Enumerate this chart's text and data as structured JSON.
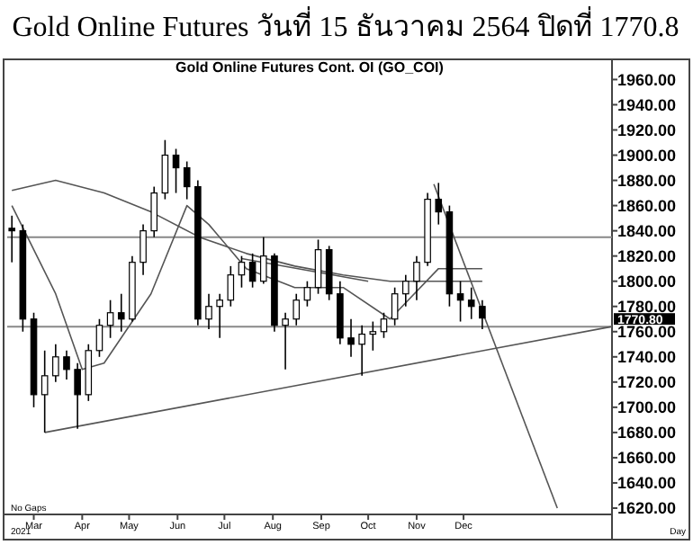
{
  "chart_data": {
    "type": "candlestick",
    "title": "Gold Online Futures วันที่ 15 ธันวาคม 2564 ปิดที่ 1770.8",
    "subtitle": "Gold Online Futures Cont. OI (GO_COI)",
    "x": [
      "2021-02-15",
      "2021-02-22",
      "2021-03-01",
      "2021-03-08",
      "2021-03-15",
      "2021-03-22",
      "2021-03-29",
      "2021-04-05",
      "2021-04-12",
      "2021-04-19",
      "2021-04-26",
      "2021-05-03",
      "2021-05-10",
      "2021-05-17",
      "2021-05-24",
      "2021-05-31",
      "2021-06-07",
      "2021-06-14",
      "2021-06-21",
      "2021-06-28",
      "2021-07-05",
      "2021-07-12",
      "2021-07-19",
      "2021-07-26",
      "2021-08-02",
      "2021-08-09",
      "2021-08-16",
      "2021-08-23",
      "2021-08-30",
      "2021-09-06",
      "2021-09-13",
      "2021-09-20",
      "2021-09-27",
      "2021-10-04",
      "2021-10-11",
      "2021-10-18",
      "2021-10-25",
      "2021-11-01",
      "2021-11-08",
      "2021-11-15",
      "2021-11-22",
      "2021-11-29",
      "2021-12-06",
      "2021-12-13"
    ],
    "ohlc": [
      [
        1842,
        1852,
        1815,
        1840
      ],
      [
        1840,
        1845,
        1760,
        1770
      ],
      [
        1770,
        1775,
        1700,
        1710
      ],
      [
        1710,
        1745,
        1680,
        1725
      ],
      [
        1725,
        1750,
        1720,
        1740
      ],
      [
        1740,
        1745,
        1722,
        1730
      ],
      [
        1730,
        1735,
        1683,
        1710
      ],
      [
        1710,
        1750,
        1705,
        1745
      ],
      [
        1745,
        1770,
        1740,
        1765
      ],
      [
        1765,
        1785,
        1755,
        1775
      ],
      [
        1775,
        1790,
        1760,
        1770
      ],
      [
        1770,
        1820,
        1768,
        1815
      ],
      [
        1815,
        1845,
        1805,
        1840
      ],
      [
        1840,
        1875,
        1835,
        1870
      ],
      [
        1870,
        1912,
        1865,
        1900
      ],
      [
        1900,
        1905,
        1870,
        1890
      ],
      [
        1890,
        1895,
        1865,
        1875
      ],
      [
        1875,
        1880,
        1765,
        1770
      ],
      [
        1770,
        1790,
        1762,
        1780
      ],
      [
        1780,
        1790,
        1755,
        1785
      ],
      [
        1785,
        1812,
        1780,
        1805
      ],
      [
        1805,
        1820,
        1795,
        1815
      ],
      [
        1815,
        1822,
        1795,
        1800
      ],
      [
        1800,
        1835,
        1798,
        1820
      ],
      [
        1820,
        1822,
        1760,
        1765
      ],
      [
        1765,
        1775,
        1730,
        1770
      ],
      [
        1770,
        1790,
        1765,
        1785
      ],
      [
        1785,
        1800,
        1780,
        1795
      ],
      [
        1795,
        1833,
        1790,
        1825
      ],
      [
        1825,
        1828,
        1785,
        1790
      ],
      [
        1790,
        1800,
        1750,
        1755
      ],
      [
        1755,
        1770,
        1740,
        1750
      ],
      [
        1750,
        1765,
        1725,
        1758
      ],
      [
        1758,
        1768,
        1745,
        1760
      ],
      [
        1760,
        1775,
        1755,
        1770
      ],
      [
        1770,
        1795,
        1765,
        1790
      ],
      [
        1790,
        1805,
        1780,
        1800
      ],
      [
        1800,
        1820,
        1785,
        1815
      ],
      [
        1815,
        1870,
        1812,
        1865
      ],
      [
        1865,
        1878,
        1845,
        1855
      ],
      [
        1855,
        1860,
        1780,
        1790
      ],
      [
        1790,
        1800,
        1768,
        1785
      ],
      [
        1785,
        1795,
        1770,
        1780
      ],
      [
        1780,
        1785,
        1762,
        1770.8
      ]
    ],
    "color": "#000000",
    "series": [
      {
        "type": "line",
        "color": "#555555",
        "x": [
          "2021-02-15",
          "2021-03-15",
          "2021-04-15",
          "2021-05-15",
          "2021-06-15",
          "2021-07-15",
          "2021-08-15",
          "2021-09-15",
          "2021-10-15",
          "2021-11-15",
          "2021-12-13"
        ],
        "values": [
          1872,
          1880,
          1870,
          1855,
          1835,
          1822,
          1812,
          1805,
          1800,
          1800,
          1800
        ]
      },
      {
        "type": "line",
        "color": "#555555",
        "x": [
          "2021-02-15",
          "2021-03-15",
          "2021-04-01",
          "2021-04-15",
          "2021-05-15",
          "2021-06-07",
          "2021-06-21",
          "2021-07-15",
          "2021-08-15",
          "2021-09-15",
          "2021-10-15",
          "2021-11-15",
          "2021-12-13"
        ],
        "values": [
          1860,
          1790,
          1730,
          1735,
          1790,
          1860,
          1845,
          1810,
          1795,
          1795,
          1770,
          1810,
          1810
        ]
      },
      {
        "type": "line",
        "color": "#555555",
        "x": [
          "2021-03-08",
          "2022-03-06"
        ],
        "values": [
          1680,
          1764
        ]
      },
      {
        "type": "line",
        "color": "#555555",
        "x": [
          "2021-11-12",
          "2022-01-30"
        ],
        "values": [
          1877,
          1620
        ]
      },
      {
        "type": "line",
        "color": "#555555",
        "x": [
          "2021-07-12",
          "2021-10-01"
        ],
        "values": [
          1818,
          1800
        ]
      }
    ],
    "ref_lines": [
      {
        "axis": "y",
        "value": 1835,
        "color": "#888888"
      },
      {
        "axis": "y",
        "value": 1764,
        "color": "#888888"
      }
    ],
    "xlim": [
      "2021-02-12",
      "2022-03-06"
    ],
    "xticks": [
      {
        "value": "2021-03-01",
        "label": "Mar"
      },
      {
        "value": "2021-04-01",
        "label": "Apr"
      },
      {
        "value": "2021-05-01",
        "label": "May"
      },
      {
        "value": "2021-06-01",
        "label": "Jun"
      },
      {
        "value": "2021-07-01",
        "label": "Jul"
      },
      {
        "value": "2021-08-01",
        "label": "Aug"
      },
      {
        "value": "2021-09-01",
        "label": "Sep"
      },
      {
        "value": "2021-10-01",
        "label": "Oct"
      },
      {
        "value": "2021-11-01",
        "label": "Nov"
      },
      {
        "value": "2021-12-01",
        "label": "Dec"
      }
    ],
    "ylim": [
      1615,
      1976
    ],
    "yticks": [
      {
        "value": 1620,
        "label": "1620.00"
      },
      {
        "value": 1640,
        "label": "1640.00"
      },
      {
        "value": 1660,
        "label": "1660.00"
      },
      {
        "value": 1680,
        "label": "1680.00"
      },
      {
        "value": 1700,
        "label": "1700.00"
      },
      {
        "value": 1720,
        "label": "1720.00"
      },
      {
        "value": 1740,
        "label": "1740.00"
      },
      {
        "value": 1760,
        "label": "1760.00"
      },
      {
        "value": 1780,
        "label": "1780.00"
      },
      {
        "value": 1800,
        "label": "1800.00"
      },
      {
        "value": 1820,
        "label": "1820.00"
      },
      {
        "value": 1840,
        "label": "1840.00"
      },
      {
        "value": 1860,
        "label": "1860.00"
      },
      {
        "value": 1880,
        "label": "1880.00"
      },
      {
        "value": 1900,
        "label": "1900.00"
      },
      {
        "value": 1920,
        "label": "1920.00"
      },
      {
        "value": 1940,
        "label": "1940.00"
      },
      {
        "value": 1960,
        "label": "1960.00"
      }
    ],
    "annotations": [
      "1770.80",
      "No Gaps",
      "2021",
      "Day"
    ]
  }
}
